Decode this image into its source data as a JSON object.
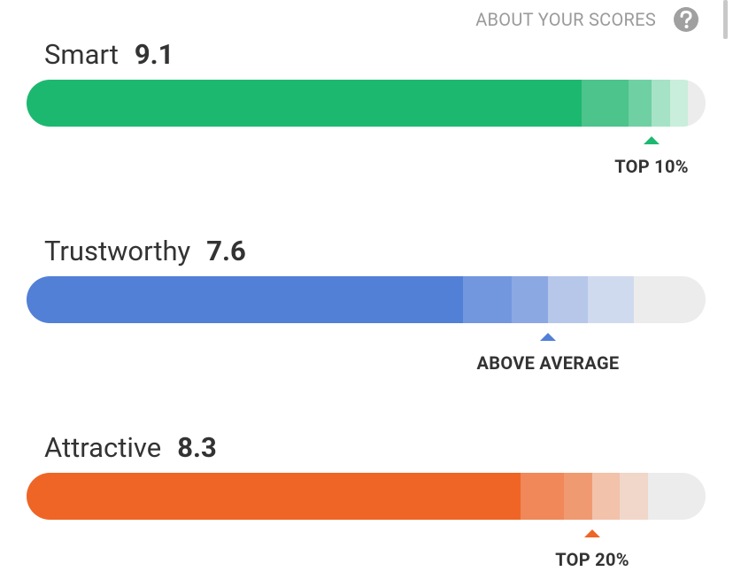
{
  "header": {
    "link": "ABOUT YOUR SCORES"
  },
  "scores": [
    {
      "label": "Smart",
      "score": 9.1,
      "rank": "TOP 10%"
    },
    {
      "label": "Trustworthy",
      "score": 7.6,
      "rank": "ABOVE AVERAGE"
    },
    {
      "label": "Attractive",
      "score": 8.3,
      "rank": "TOP 20%"
    }
  ]
}
